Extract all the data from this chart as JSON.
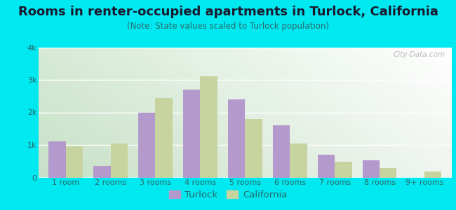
{
  "title": "Rooms in renter-occupied apartments in Turlock, California",
  "subtitle": "(Note: State values scaled to Turlock population)",
  "categories": [
    "1 room",
    "2 rooms",
    "3 rooms",
    "4 rooms",
    "5 rooms",
    "6 rooms",
    "7 rooms",
    "8 rooms",
    "9+ rooms"
  ],
  "turlock_values": [
    1100,
    350,
    2000,
    2700,
    2400,
    1600,
    700,
    520,
    0
  ],
  "california_values": [
    950,
    1050,
    2450,
    3100,
    1800,
    1050,
    480,
    280,
    175
  ],
  "turlock_color": "#b399cc",
  "california_color": "#c8d4a0",
  "background_outer": "#00e8f0",
  "ylim": [
    0,
    4000
  ],
  "yticks": [
    0,
    1000,
    2000,
    3000,
    4000
  ],
  "bar_width": 0.38,
  "title_fontsize": 13,
  "subtitle_fontsize": 8.5,
  "legend_fontsize": 9.5,
  "tick_fontsize": 8,
  "watermark_text": "City-Data.com",
  "title_color": "#1a1a2e",
  "subtitle_color": "#2a6a6a",
  "tick_color": "#2a6a6a"
}
